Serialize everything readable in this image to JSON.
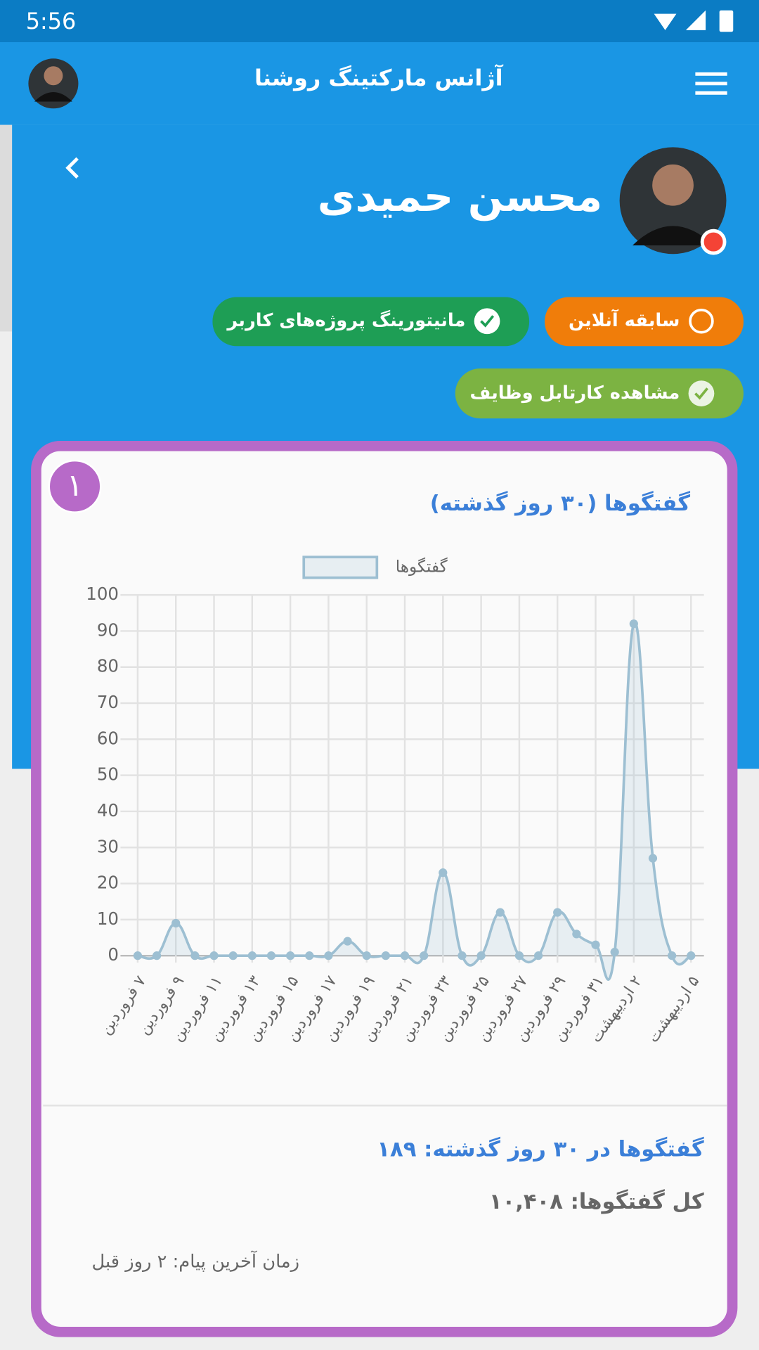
{
  "status_bar": {
    "time": "5:56"
  },
  "app_bar": {
    "title": "آژانس مارکتینگ روشنا"
  },
  "profile": {
    "name": "محسن حمیدی"
  },
  "buttons": [
    "سابقه آنلاین",
    "مانیتورینگ پروژه‌های کاربر",
    "مشاهده کارتابل وظایف"
  ],
  "card": {
    "badge": "۱",
    "stats": [
      "گفتگوها در ۳۰ روز گذشته: ۱۸۹",
      "کل گفتگوها: ۱۰,۴۰۸"
    ],
    "last_message": "زمان آخرین پیام: ۲ روز قبل"
  },
  "chart_data": {
    "type": "line",
    "title": "گفتگوها (۳۰ روز گذشته)",
    "categories": [
      "۷ فروردین",
      null,
      "۹ فروردین",
      null,
      "۱۱ فروردین",
      null,
      "۱۳ فروردین",
      null,
      "۱۵ فروردین",
      null,
      "۱۷ فروردین",
      null,
      "۱۹ فروردین",
      null,
      "۲۱ فروردین",
      null,
      "۲۳ فروردین",
      null,
      "۲۵ فروردین",
      null,
      "۲۷ فروردین",
      null,
      "۲۹ فروردین",
      null,
      "۳۱ فروردین",
      null,
      "۲ اردیبهشت",
      null,
      null,
      "۵ اردیبهشت"
    ],
    "series": [
      {
        "name": "گفتگوها",
        "color": "#9dbfd2",
        "values": [
          0,
          0,
          9,
          0,
          0,
          0,
          0,
          0,
          0,
          0,
          0,
          4,
          0,
          0,
          0,
          0,
          23,
          0,
          0,
          12,
          0,
          0,
          12,
          6,
          3,
          1,
          92,
          27,
          0,
          0
        ]
      }
    ],
    "ylim": [
      0,
      100
    ],
    "yticks": [
      0,
      10,
      20,
      30,
      40,
      50,
      60,
      70,
      80,
      90,
      100
    ],
    "grid": true
  }
}
